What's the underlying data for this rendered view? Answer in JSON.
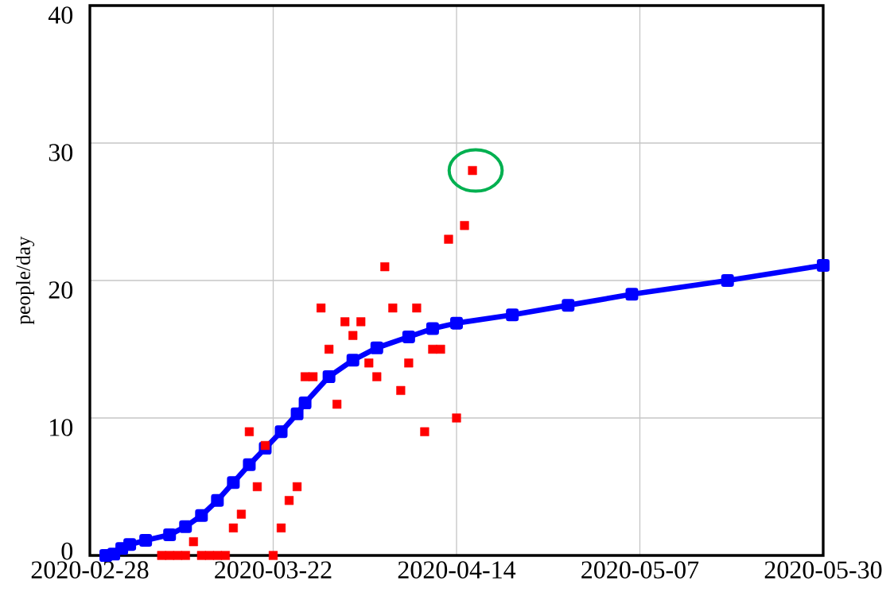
{
  "chart_data": {
    "type": "scatter",
    "ylabel": "people/day",
    "xlim": [
      "2020-02-28",
      "2020-05-30"
    ],
    "xticks": [
      "2020-02-28",
      "2020-03-22",
      "2020-04-14",
      "2020-05-07",
      "2020-05-30"
    ],
    "ylim": [
      0,
      40
    ],
    "yticks": [
      0,
      10,
      20,
      30,
      40
    ],
    "grid": true,
    "marker": "square",
    "series": [
      {
        "type": "line",
        "color": "#0000ff",
        "x": [
          "2020-03-01",
          "2020-03-02",
          "2020-03-03",
          "2020-03-04",
          "2020-03-06",
          "2020-03-09",
          "2020-03-11",
          "2020-03-13",
          "2020-03-15",
          "2020-03-17",
          "2020-03-19",
          "2020-03-21",
          "2020-03-23",
          "2020-03-25",
          "2020-03-26",
          "2020-03-29",
          "2020-04-01",
          "2020-04-04",
          "2020-04-08",
          "2020-04-11",
          "2020-04-14",
          "2020-04-21",
          "2020-04-28",
          "2020-05-06",
          "2020-05-18",
          "2020-05-30"
        ],
        "values": [
          0,
          0.1,
          0.5,
          0.8,
          1.1,
          1.5,
          2.1,
          2.9,
          4.0,
          5.3,
          6.6,
          7.8,
          9.0,
          10.3,
          11.1,
          13.0,
          14.2,
          15.1,
          15.9,
          16.5,
          16.9,
          17.5,
          18.2,
          19.0,
          20.0,
          21.1
        ]
      },
      {
        "color": "#ff0000",
        "x": [
          "2020-03-08",
          "2020-03-09",
          "2020-03-10",
          "2020-03-11",
          "2020-03-12",
          "2020-03-13",
          "2020-03-14",
          "2020-03-15",
          "2020-03-16",
          "2020-03-17",
          "2020-03-18",
          "2020-03-19",
          "2020-03-20",
          "2020-03-21",
          "2020-03-22",
          "2020-03-23",
          "2020-03-24",
          "2020-03-25",
          "2020-03-26",
          "2020-03-27",
          "2020-03-28",
          "2020-03-29",
          "2020-03-30",
          "2020-03-31",
          "2020-04-01",
          "2020-04-02",
          "2020-04-03",
          "2020-04-04",
          "2020-04-05",
          "2020-04-06",
          "2020-04-07",
          "2020-04-08",
          "2020-04-09",
          "2020-04-10",
          "2020-04-11",
          "2020-04-12",
          "2020-04-13",
          "2020-04-14",
          "2020-04-15",
          "2020-04-16"
        ],
        "values": [
          0,
          0,
          0,
          0,
          1,
          0,
          0,
          0,
          0,
          2,
          3,
          9,
          5,
          8,
          0,
          2,
          4,
          5,
          13,
          13,
          18,
          15,
          11,
          17,
          16,
          17,
          14,
          13,
          21,
          18,
          12,
          14,
          18,
          9,
          15,
          15,
          23,
          10,
          24,
          28
        ]
      }
    ]
  }
}
